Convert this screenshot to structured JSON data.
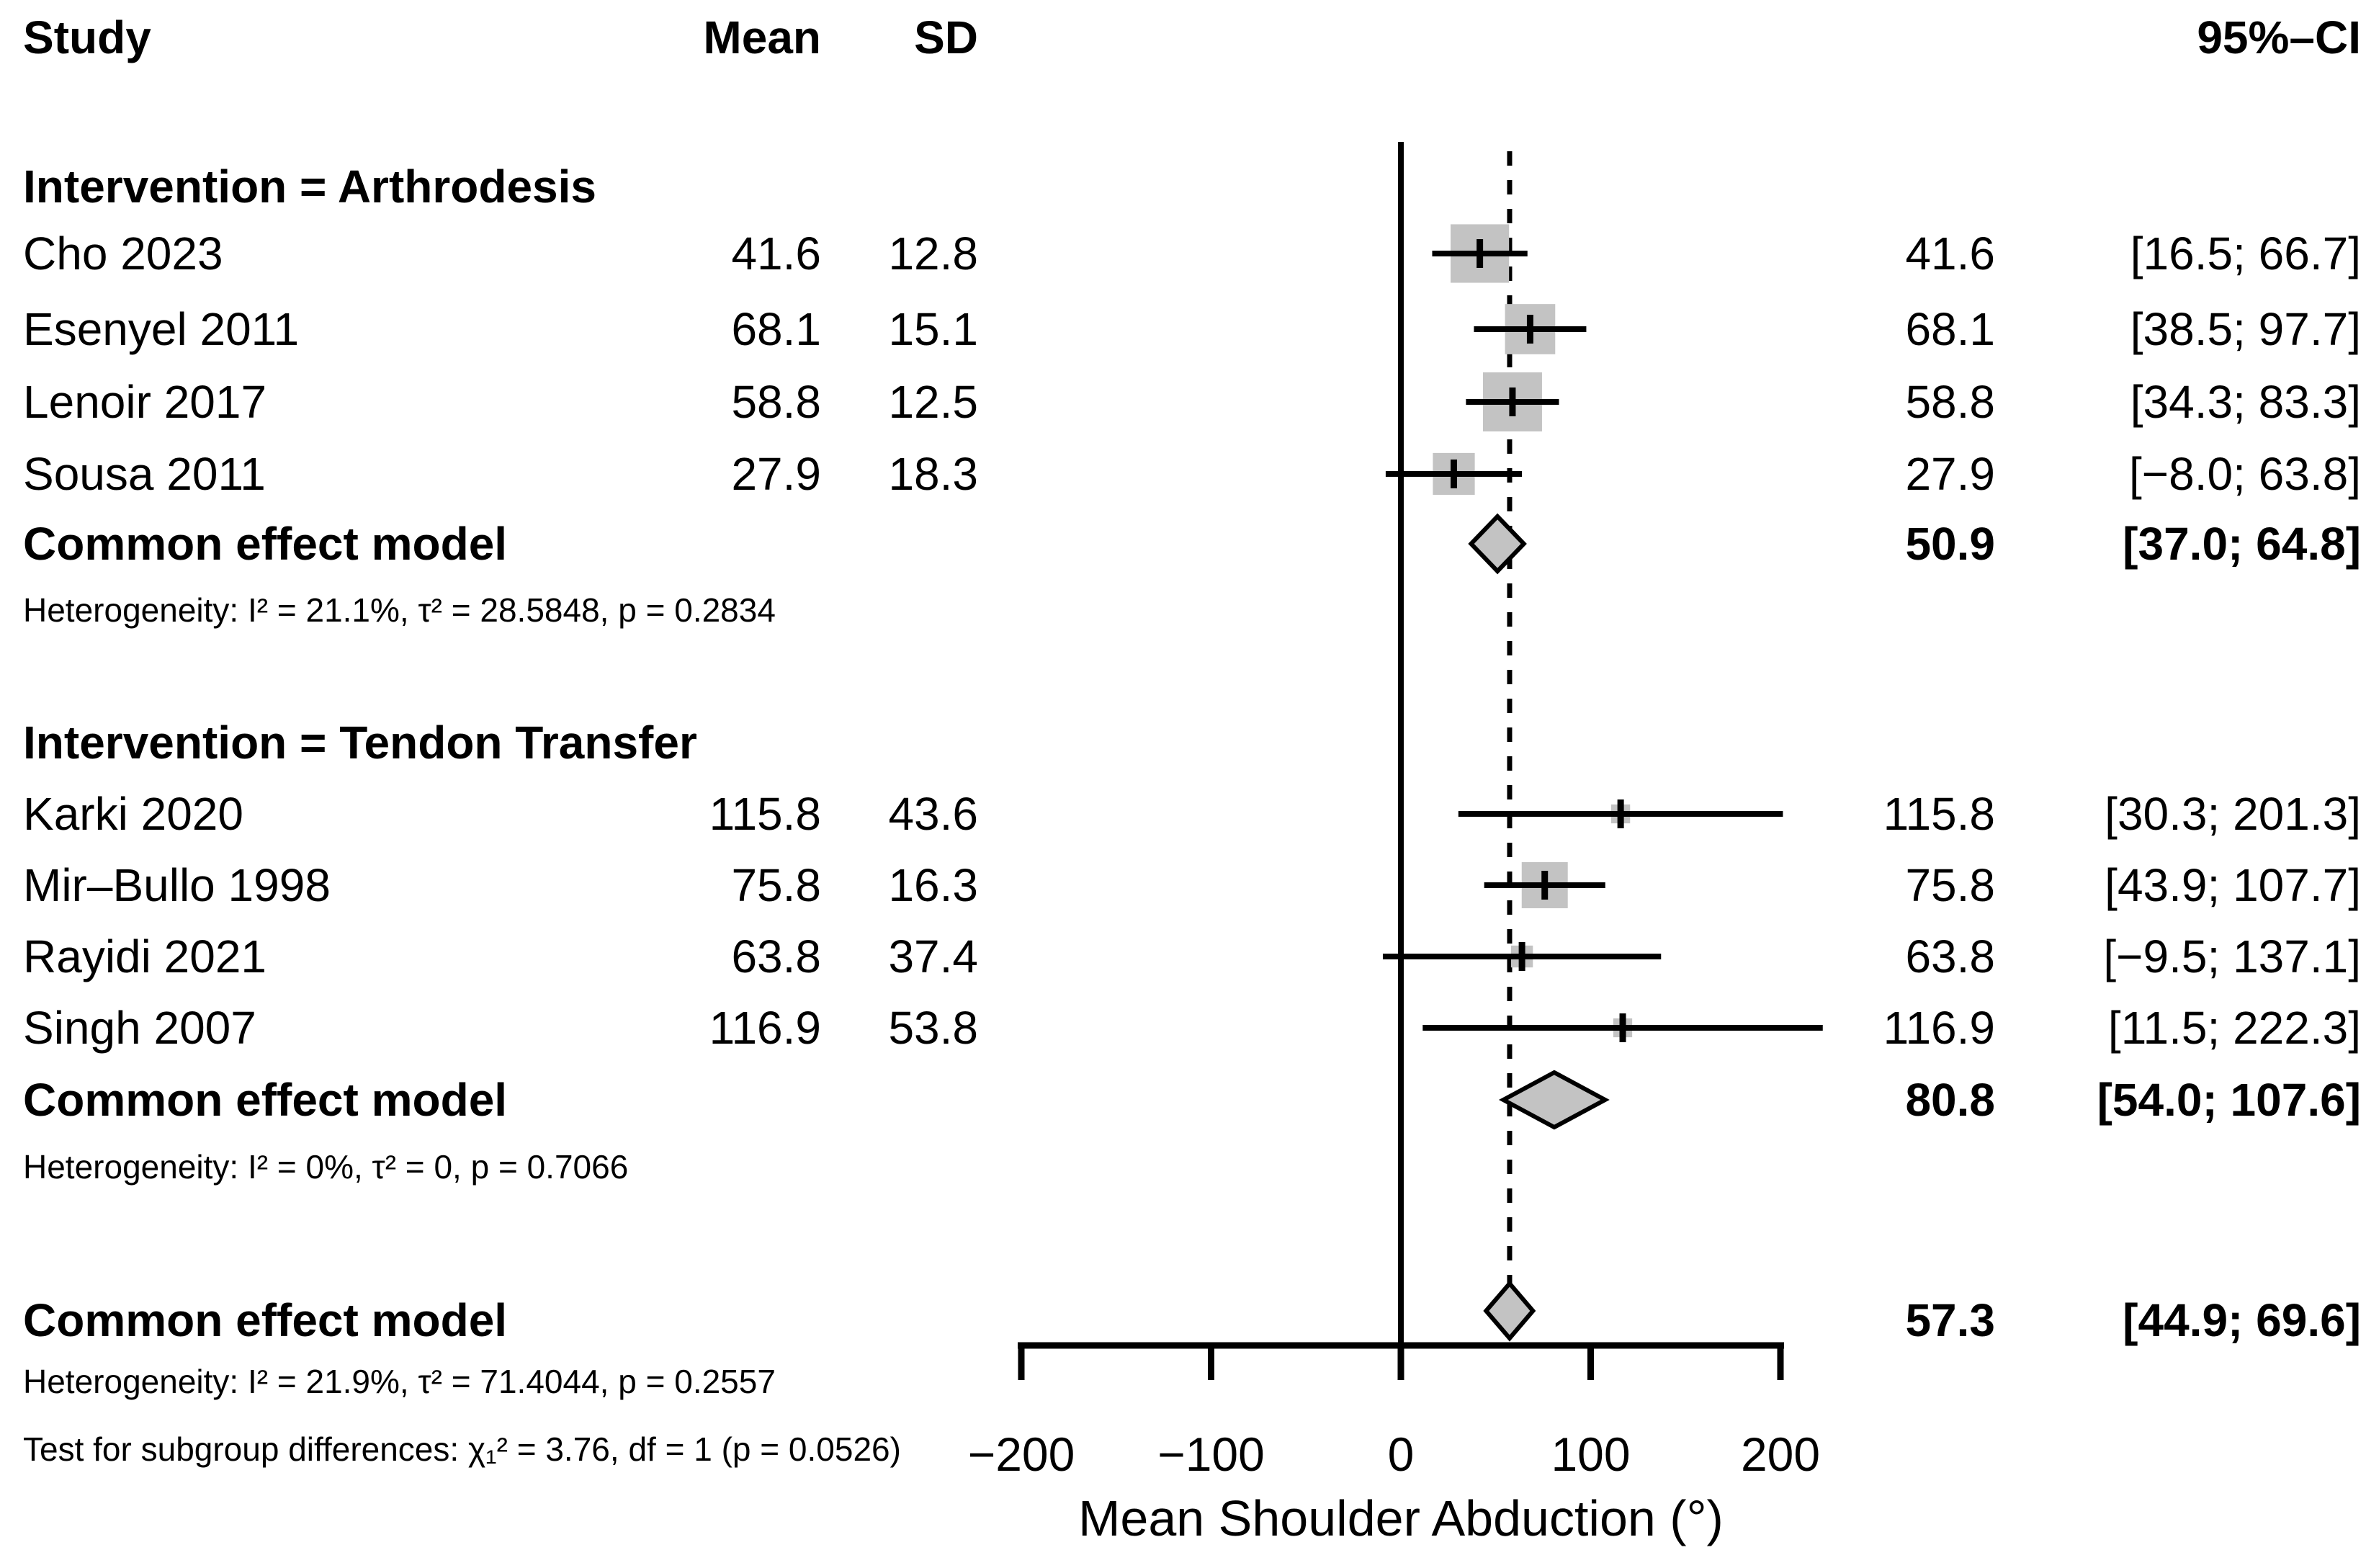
{
  "header": {
    "study": "Study",
    "mean": "Mean",
    "sd": "SD",
    "ci": "95%–CI"
  },
  "chart_data": {
    "type": "forest",
    "xlabel": "Mean Shoulder Abduction (°)",
    "x_range": [
      -200,
      200
    ],
    "x_ticks": [
      -200,
      -100,
      0,
      100,
      200
    ],
    "x_tick_labels": [
      "−200",
      "−100",
      "0",
      "100",
      "200"
    ],
    "grid": "off",
    "zero_line": 0,
    "marker_color": "#c3c3c3",
    "subgroups": [
      {
        "label": "Intervention = Arthrodesis",
        "studies": [
          {
            "label": "Cho 2023",
            "mean": "41.6",
            "sd": "12.8",
            "effect": 41.6,
            "ci_low": 16.5,
            "ci_high": 66.7,
            "effect_label": "41.6",
            "ci_label": "[16.5; 66.7]",
            "rel_weight": 0.99
          },
          {
            "label": "Esenyel 2011",
            "mean": "68.1",
            "sd": "15.1",
            "effect": 68.1,
            "ci_low": 38.5,
            "ci_high": 97.7,
            "effect_label": "68.1",
            "ci_label": "[38.5; 97.7]",
            "rel_weight": 0.85
          },
          {
            "label": "Lenoir 2017",
            "mean": "58.8",
            "sd": "12.5",
            "effect": 58.8,
            "ci_low": 34.3,
            "ci_high": 83.3,
            "effect_label": "58.8",
            "ci_label": "[34.3; 83.3]",
            "rel_weight": 1.0
          },
          {
            "label": "Sousa 2011",
            "mean": "27.9",
            "sd": "18.3",
            "effect": 27.9,
            "ci_low": -8.0,
            "ci_high": 63.8,
            "effect_label": "27.9",
            "ci_label": "[−8.0; 63.8]",
            "rel_weight": 0.71
          }
        ],
        "summary": {
          "label": "Common effect model",
          "effect": 50.9,
          "ci_low": 37.0,
          "ci_high": 64.8,
          "effect_label": "50.9",
          "ci_label": "[37.0; 64.8]"
        },
        "heterogeneity": "Heterogeneity: I² = 21.1%, τ² = 28.5848, p = 0.2834"
      },
      {
        "label": "Intervention = Tendon Transfer",
        "studies": [
          {
            "label": "Karki 2020",
            "mean": "115.8",
            "sd": "43.6",
            "effect": 115.8,
            "ci_low": 30.3,
            "ci_high": 201.3,
            "effect_label": "115.8",
            "ci_label": "[30.3; 201.3]",
            "rel_weight": 0.32
          },
          {
            "label": "Mir–Bullo 1998",
            "mean": "75.8",
            "sd": "16.3",
            "effect": 75.8,
            "ci_low": 43.9,
            "ci_high": 107.7,
            "effect_label": "75.8",
            "ci_label": "[43.9; 107.7]",
            "rel_weight": 0.78
          },
          {
            "label": "Rayidi 2021",
            "mean": "63.8",
            "sd": "37.4",
            "effect": 63.8,
            "ci_low": -9.5,
            "ci_high": 137.1,
            "effect_label": "63.8",
            "ci_label": "[−9.5; 137.1]",
            "rel_weight": 0.37
          },
          {
            "label": "Singh 2007",
            "mean": "116.9",
            "sd": "53.8",
            "effect": 116.9,
            "ci_low": 11.5,
            "ci_high": 222.3,
            "effect_label": "116.9",
            "ci_label": "[11.5; 222.3]",
            "rel_weight": 0.32
          }
        ],
        "summary": {
          "label": "Common effect model",
          "effect": 80.8,
          "ci_low": 54.0,
          "ci_high": 107.6,
          "effect_label": "80.8",
          "ci_label": "[54.0; 107.6]"
        },
        "heterogeneity": "Heterogeneity: I² = 0%, τ² = 0, p = 0.7066"
      }
    ],
    "overall": {
      "label": "Common effect model",
      "effect": 57.3,
      "ci_low": 44.9,
      "ci_high": 69.6,
      "effect_label": "57.3",
      "ci_label": "[44.9; 69.6]",
      "heterogeneity": "Heterogeneity: I² = 21.9%, τ² = 71.4044, p = 0.2557",
      "subgroup_test": "Test for subgroup differences: χ₁² = 3.76, df = 1 (p = 0.0526)"
    }
  }
}
